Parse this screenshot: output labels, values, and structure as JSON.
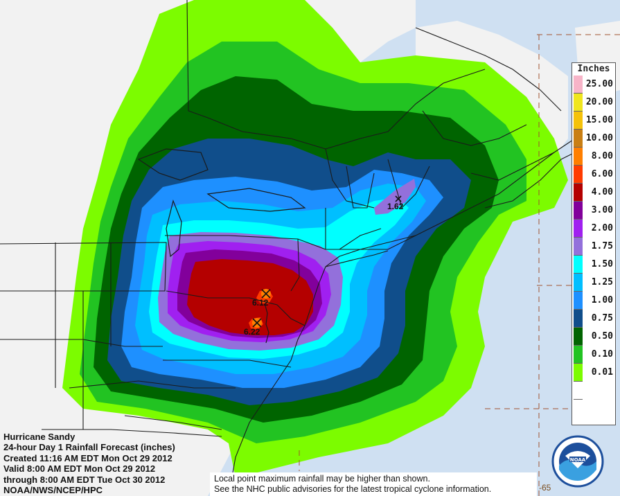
{
  "map": {
    "title_lines": [
      "Hurricane Sandy",
      "24-hour Day 1 Rainfall Forecast (inches)",
      "Created 11:16 AM EDT Mon Oct 29 2012",
      "Valid 8:00 AM EDT Mon Oct 29 2012",
      "through 8:00 AM EDT Tue Oct 30 2012",
      "NOAA/NWS/NCEP/HPC"
    ],
    "disclaimer_lines": [
      "Local point maximum rainfall may be higher than shown.",
      "See the NHC public advisories for the latest tropical cyclone information."
    ],
    "grid_label": "-65",
    "maxima": [
      {
        "label": "1.62"
      },
      {
        "label": "6.12"
      },
      {
        "label": "6.22"
      }
    ],
    "colors": {
      "ocean": "#cfe0f2",
      "land": "#f2f2f2",
      "borders": "#1a1a1a"
    }
  },
  "legend": {
    "title": "Inches",
    "items": [
      {
        "label": "25.00",
        "color": "#f7b4c8"
      },
      {
        "label": "20.00",
        "color": "#f0e61e"
      },
      {
        "label": "15.00",
        "color": "#f5c20a"
      },
      {
        "label": "10.00",
        "color": "#c97f14"
      },
      {
        "label": "8.00",
        "color": "#ff7f00"
      },
      {
        "label": "6.00",
        "color": "#ff3c00"
      },
      {
        "label": "4.00",
        "color": "#b40000"
      },
      {
        "label": "3.00",
        "color": "#82009b"
      },
      {
        "label": "2.00",
        "color": "#a020f0"
      },
      {
        "label": "1.75",
        "color": "#9370db"
      },
      {
        "label": "1.50",
        "color": "#00ffff"
      },
      {
        "label": "1.25",
        "color": "#00bfff"
      },
      {
        "label": "1.00",
        "color": "#1e90ff"
      },
      {
        "label": "0.75",
        "color": "#104e8b"
      },
      {
        "label": "0.50",
        "color": "#006400"
      },
      {
        "label": "0.10",
        "color": "#22c322"
      },
      {
        "label": "0.01",
        "color": "#7cfc00"
      },
      {
        "label": "",
        "color": "#ffffff"
      }
    ]
  }
}
